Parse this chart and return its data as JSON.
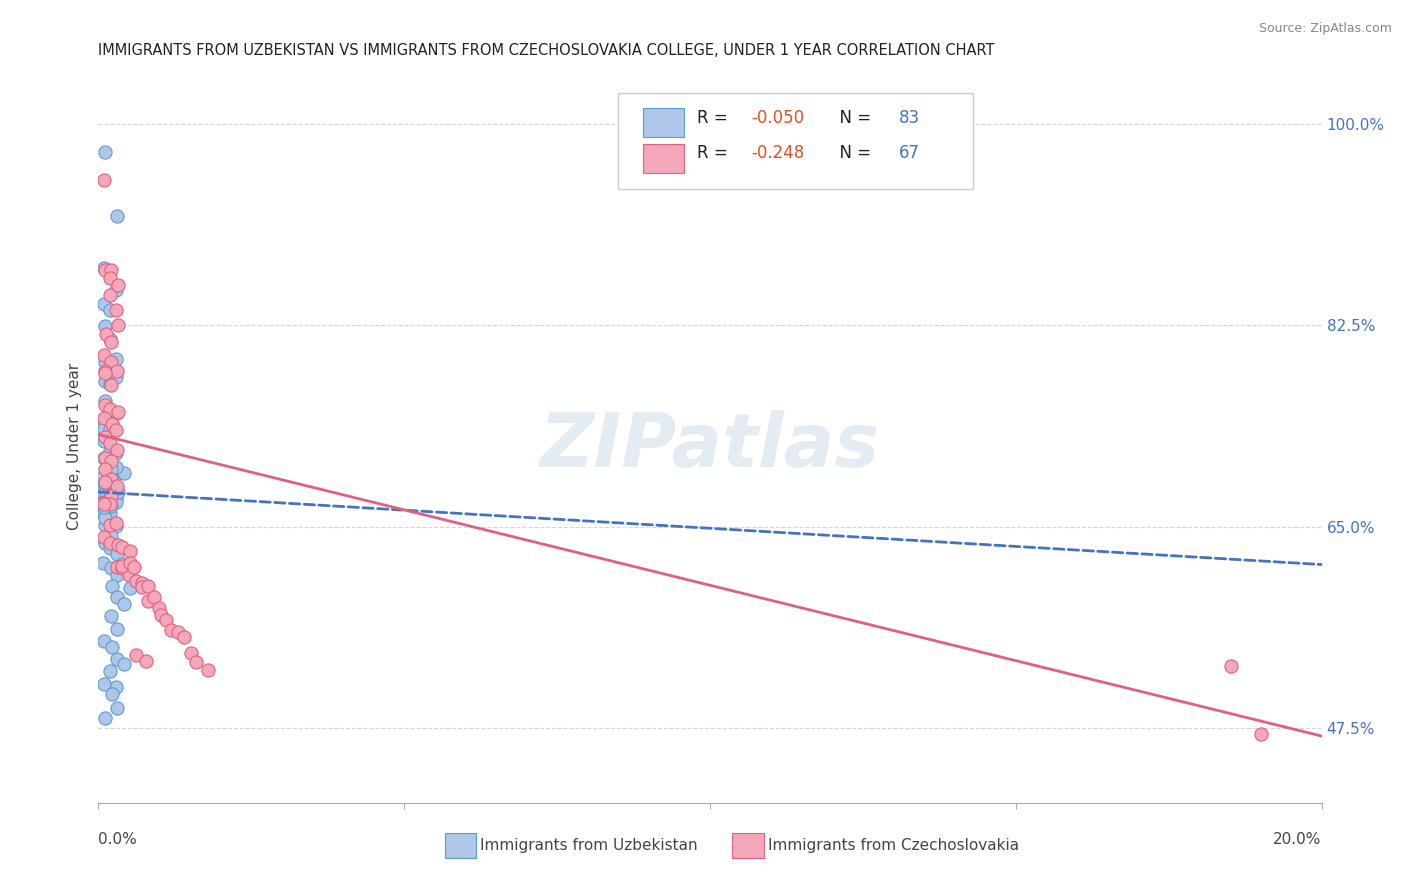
{
  "title": "IMMIGRANTS FROM UZBEKISTAN VS IMMIGRANTS FROM CZECHOSLOVAKIA COLLEGE, UNDER 1 YEAR CORRELATION CHART",
  "source": "Source: ZipAtlas.com",
  "ylabel_label": "College, Under 1 year",
  "ytick_labels": [
    "47.5%",
    "65.0%",
    "82.5%",
    "100.0%"
  ],
  "ytick_vals": [
    0.475,
    0.65,
    0.825,
    1.0
  ],
  "xtick_labels": [
    "0.0%",
    "",
    "",
    "",
    "20.0%"
  ],
  "xtick_vals": [
    0.0,
    0.05,
    0.1,
    0.15,
    0.2
  ],
  "xmin": 0.0,
  "xmax": 0.2,
  "ymin": 0.41,
  "ymax": 1.03,
  "uzbekistan_fill": "#aec6e8",
  "uzbekistan_edge": "#5b9bd5",
  "czechoslovakia_fill": "#f4a7b9",
  "czechoslovakia_edge": "#e06080",
  "trend_uzbek_color": "#4472c4",
  "trend_czech_color": "#e06080",
  "watermark": "ZIPatlas",
  "legend_r_color": "#e05020",
  "legend_n_color": "#4472c4",
  "uzbekistan_x": [
    0.001,
    0.003,
    0.001,
    0.003,
    0.001,
    0.002,
    0.001,
    0.002,
    0.003,
    0.001,
    0.002,
    0.001,
    0.003,
    0.002,
    0.001,
    0.002,
    0.003,
    0.001,
    0.002,
    0.001,
    0.002,
    0.001,
    0.002,
    0.003,
    0.001,
    0.002,
    0.003,
    0.002,
    0.001,
    0.002,
    0.003,
    0.001,
    0.002,
    0.001,
    0.002,
    0.003,
    0.001,
    0.002,
    0.001,
    0.002,
    0.003,
    0.001,
    0.002,
    0.001,
    0.002,
    0.001,
    0.003,
    0.002,
    0.001,
    0.002,
    0.001,
    0.002,
    0.001,
    0.003,
    0.002,
    0.001,
    0.002,
    0.004,
    0.003,
    0.002,
    0.001,
    0.002,
    0.003,
    0.004,
    0.001,
    0.002,
    0.003,
    0.005,
    0.002,
    0.003,
    0.004,
    0.002,
    0.003,
    0.001,
    0.002,
    0.003,
    0.004,
    0.002,
    0.003,
    0.001,
    0.002,
    0.003,
    0.001
  ],
  "uzbekistan_y": [
    0.975,
    0.92,
    0.875,
    0.855,
    0.84,
    0.835,
    0.82,
    0.81,
    0.8,
    0.795,
    0.79,
    0.78,
    0.775,
    0.77,
    0.76,
    0.755,
    0.75,
    0.745,
    0.74,
    0.735,
    0.73,
    0.725,
    0.72,
    0.715,
    0.71,
    0.705,
    0.7,
    0.695,
    0.69,
    0.685,
    0.68,
    0.675,
    0.67,
    0.665,
    0.66,
    0.655,
    0.65,
    0.645,
    0.64,
    0.635,
    0.68,
    0.67,
    0.66,
    0.67,
    0.68,
    0.665,
    0.675,
    0.685,
    0.69,
    0.695,
    0.66,
    0.665,
    0.67,
    0.675,
    0.68,
    0.685,
    0.69,
    0.695,
    0.7,
    0.705,
    0.64,
    0.63,
    0.625,
    0.62,
    0.615,
    0.61,
    0.605,
    0.6,
    0.595,
    0.59,
    0.58,
    0.57,
    0.56,
    0.55,
    0.545,
    0.535,
    0.53,
    0.52,
    0.515,
    0.51,
    0.5,
    0.49,
    0.48
  ],
  "czechoslovakia_x": [
    0.001,
    0.001,
    0.002,
    0.002,
    0.002,
    0.003,
    0.003,
    0.003,
    0.001,
    0.002,
    0.001,
    0.002,
    0.001,
    0.003,
    0.001,
    0.002,
    0.001,
    0.002,
    0.003,
    0.001,
    0.002,
    0.003,
    0.001,
    0.002,
    0.003,
    0.001,
    0.002,
    0.001,
    0.002,
    0.003,
    0.001,
    0.002,
    0.001,
    0.002,
    0.001,
    0.002,
    0.003,
    0.001,
    0.002,
    0.003,
    0.004,
    0.005,
    0.003,
    0.004,
    0.005,
    0.006,
    0.004,
    0.005,
    0.006,
    0.007,
    0.007,
    0.008,
    0.008,
    0.009,
    0.01,
    0.01,
    0.011,
    0.012,
    0.013,
    0.014,
    0.015,
    0.016,
    0.018,
    0.185,
    0.006,
    0.008,
    0.19
  ],
  "czechoslovakia_y": [
    0.955,
    0.875,
    0.87,
    0.865,
    0.855,
    0.86,
    0.84,
    0.83,
    0.82,
    0.81,
    0.8,
    0.795,
    0.79,
    0.785,
    0.78,
    0.77,
    0.76,
    0.755,
    0.75,
    0.745,
    0.74,
    0.735,
    0.725,
    0.72,
    0.715,
    0.71,
    0.705,
    0.7,
    0.695,
    0.69,
    0.685,
    0.68,
    0.675,
    0.67,
    0.665,
    0.655,
    0.65,
    0.645,
    0.64,
    0.635,
    0.63,
    0.625,
    0.62,
    0.615,
    0.61,
    0.605,
    0.62,
    0.615,
    0.61,
    0.605,
    0.6,
    0.595,
    0.59,
    0.585,
    0.58,
    0.575,
    0.57,
    0.565,
    0.56,
    0.555,
    0.54,
    0.535,
    0.53,
    0.525,
    0.54,
    0.535,
    0.47
  ],
  "trend_uzbek_x0": 0.0,
  "trend_uzbek_x1": 0.2,
  "trend_uzbek_y0": 0.68,
  "trend_uzbek_y1": 0.617,
  "trend_czech_x0": 0.0,
  "trend_czech_x1": 0.2,
  "trend_czech_y0": 0.73,
  "trend_czech_y1": 0.468
}
